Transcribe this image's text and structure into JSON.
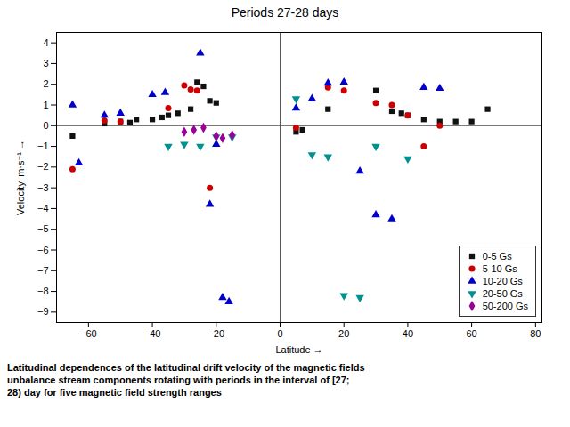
{
  "chart_data": {
    "type": "scatter",
    "title": "Periods 27-28 days",
    "xlabel": "Latitude",
    "ylabel": "Velocity, m·s⁻¹",
    "caption": "Latitudinal dependences of the latitudinal drift velocity of the magnetic fields\nunbalance stream components rotating with periods in the interval of [27;\n28) day for five magnetic field strength ranges",
    "xlim": [
      -70,
      82
    ],
    "ylim": [
      -9.5,
      4.5
    ],
    "xticks": [
      -60,
      -40,
      -20,
      0,
      20,
      40,
      60,
      80
    ],
    "yticks": [
      4,
      3,
      2,
      1,
      0,
      -1,
      -2,
      -3,
      -4,
      -5,
      -6,
      -7,
      -8,
      -9
    ],
    "hlines": [
      0
    ],
    "vlines": [
      0
    ],
    "grid": false,
    "legend": "lower right",
    "series": [
      {
        "name": "0-5 Gs",
        "color": "#111111",
        "marker": "square",
        "x": [
          -65,
          -55,
          -50,
          -47,
          -45,
          -40,
          -37,
          -35,
          -32,
          -28,
          -26,
          -24,
          -22,
          -20,
          5,
          7,
          15,
          30,
          35,
          38,
          40,
          45,
          50,
          55,
          60,
          65
        ],
        "values": [
          -0.5,
          0.1,
          0.2,
          0.15,
          0.3,
          0.3,
          0.4,
          0.5,
          0.6,
          0.8,
          2.1,
          1.9,
          1.2,
          1.1,
          -0.3,
          -0.2,
          0.8,
          1.7,
          0.7,
          0.6,
          0.5,
          0.3,
          0.2,
          0.2,
          0.2,
          0.8
        ]
      },
      {
        "name": "5-10 Gs",
        "color": "#cc0000",
        "marker": "circle",
        "x": [
          -65,
          -55,
          -50,
          -35,
          -30,
          -28,
          -26,
          -22,
          5,
          15,
          20,
          30,
          35,
          40,
          45,
          50
        ],
        "values": [
          -2.1,
          0.25,
          0.2,
          0.85,
          1.95,
          1.75,
          1.7,
          -3.0,
          -0.1,
          1.85,
          1.7,
          1.1,
          1.0,
          0.5,
          -1.0,
          0.0
        ]
      },
      {
        "name": "10-20 Gs",
        "color": "#0000cc",
        "marker": "triangle-up",
        "x": [
          -65,
          -63,
          -55,
          -50,
          -40,
          -36,
          -25,
          -22,
          -20,
          -18,
          -16,
          5,
          10,
          15,
          20,
          25,
          30,
          35,
          45,
          50
        ],
        "values": [
          1.0,
          -1.8,
          0.5,
          0.6,
          1.5,
          1.6,
          3.5,
          -3.8,
          -0.9,
          -8.3,
          -8.5,
          0.85,
          1.3,
          2.05,
          2.1,
          -2.2,
          -4.3,
          -4.5,
          1.85,
          1.8
        ]
      },
      {
        "name": "20-50 Gs",
        "color": "#009090",
        "marker": "triangle-down",
        "x": [
          -35,
          -30,
          -25,
          -20,
          -15,
          5,
          10,
          15,
          20,
          25,
          30,
          40
        ],
        "values": [
          -1.0,
          -0.9,
          -1.0,
          -0.55,
          -0.55,
          1.3,
          -1.4,
          -1.5,
          -8.2,
          -8.3,
          -1.0,
          -1.6
        ]
      },
      {
        "name": "50-200 Gs",
        "color": "#990099",
        "marker": "diamond",
        "x": [
          -30,
          -27,
          -24,
          -20,
          -18,
          -15
        ],
        "values": [
          -0.3,
          -0.2,
          -0.1,
          -0.5,
          -0.6,
          -0.45
        ]
      }
    ]
  }
}
